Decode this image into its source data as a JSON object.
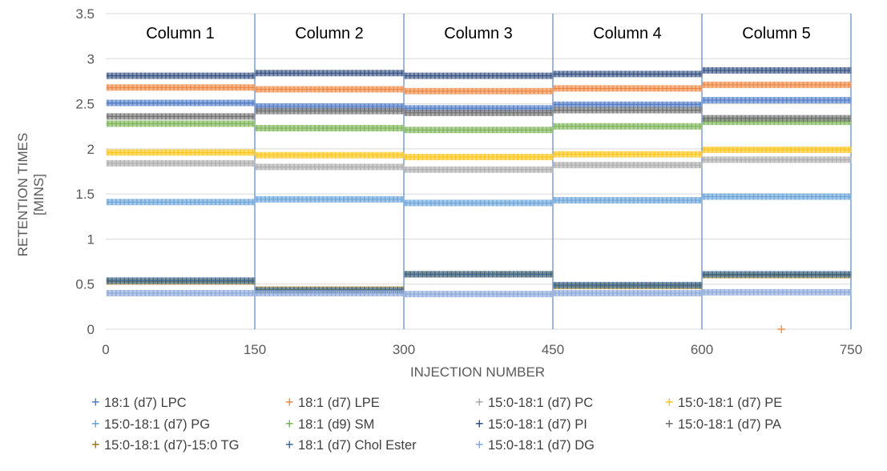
{
  "chart_data": {
    "type": "scatter",
    "title": "",
    "xlabel": "INJECTION NUMBER",
    "ylabel_lines": [
      "RETENTION TIMES",
      "[MINS]"
    ],
    "xlim": [
      0,
      750
    ],
    "ylim": [
      0,
      3.5
    ],
    "x_ticks": [
      "0",
      "150",
      "300",
      "450",
      "600",
      "750"
    ],
    "y_ticks": [
      "0",
      "0.5",
      "1",
      "1.5",
      "2",
      "2.5",
      "3",
      "3.5"
    ],
    "grid": true,
    "legend_position": "bottom",
    "columns": [
      {
        "label": "Column 1",
        "start": 0,
        "end": 150
      },
      {
        "label": "Column 2",
        "start": 150,
        "end": 300
      },
      {
        "label": "Column 3",
        "start": 300,
        "end": 450
      },
      {
        "label": "Column 4",
        "start": 450,
        "end": 600
      },
      {
        "label": "Column 5",
        "start": 600,
        "end": 750
      }
    ],
    "series": [
      {
        "name": "18:1 (d7) LPC",
        "color": "#4472C4",
        "values": [
          2.51,
          2.47,
          2.45,
          2.49,
          2.54
        ]
      },
      {
        "name": "18:1 (d7) LPE",
        "color": "#ED7D31",
        "values": [
          2.68,
          2.66,
          2.64,
          2.67,
          2.71
        ]
      },
      {
        "name": "15:0-18:1 (d7) PC",
        "color": "#A5A5A5",
        "values": [
          1.84,
          1.8,
          1.77,
          1.82,
          1.88
        ]
      },
      {
        "name": "15:0-18:1 (d7) PE",
        "color": "#FFC000",
        "values": [
          1.96,
          1.93,
          1.91,
          1.94,
          1.99
        ]
      },
      {
        "name": "15:0-18:1 (d7) PG",
        "color": "#5B9BD5",
        "values": [
          1.41,
          1.44,
          1.4,
          1.43,
          1.47
        ]
      },
      {
        "name": "18:1 (d9) SM",
        "color": "#70AD47",
        "values": [
          2.28,
          2.23,
          2.21,
          2.25,
          2.3
        ]
      },
      {
        "name": "15:0-18:1 (d7) PI",
        "color": "#264478",
        "values": [
          2.81,
          2.84,
          2.81,
          2.83,
          2.87
        ]
      },
      {
        "name": "15:0-18:1 (d7) PA",
        "color": "#636363",
        "values": [
          2.36,
          2.42,
          2.4,
          2.43,
          2.34
        ]
      },
      {
        "name": "15:0-18:1 (d7)-15:0 TG",
        "color": "#997300",
        "values": [
          0.53,
          0.44,
          0.61,
          0.48,
          0.6
        ]
      },
      {
        "name": "18:1 (d7) Chol Ester",
        "color": "#2E5F91",
        "values": [
          0.54,
          0.43,
          0.61,
          0.49,
          0.61
        ]
      },
      {
        "name": "15:0-18:1 (d7) DG",
        "color": "#7F9FD6",
        "values": [
          0.4,
          0.4,
          0.39,
          0.4,
          0.41
        ]
      }
    ],
    "annotations": [
      {
        "series": "18:1 (d7) LPE",
        "x": 680,
        "y": 0
      }
    ]
  }
}
